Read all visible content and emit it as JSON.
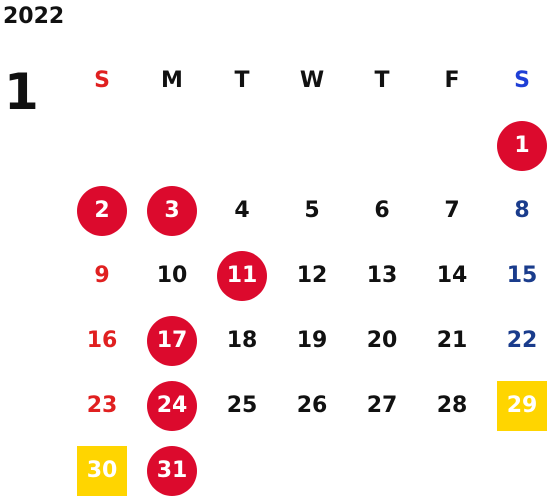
{
  "year": "2022",
  "month": "1",
  "weekdays": [
    "S",
    "M",
    "T",
    "W",
    "T",
    "F",
    "S"
  ],
  "weeks": [
    [
      {
        "day": ""
      },
      {
        "day": ""
      },
      {
        "day": ""
      },
      {
        "day": ""
      },
      {
        "day": ""
      },
      {
        "day": ""
      },
      {
        "day": "1",
        "mark": "holiday"
      }
    ],
    [
      {
        "day": "2",
        "mark": "holiday"
      },
      {
        "day": "3",
        "mark": "holiday"
      },
      {
        "day": "4"
      },
      {
        "day": "5"
      },
      {
        "day": "6"
      },
      {
        "day": "7"
      },
      {
        "day": "8"
      }
    ],
    [
      {
        "day": "9"
      },
      {
        "day": "10"
      },
      {
        "day": "11",
        "mark": "holiday"
      },
      {
        "day": "12"
      },
      {
        "day": "13"
      },
      {
        "day": "14"
      },
      {
        "day": "15"
      }
    ],
    [
      {
        "day": "16"
      },
      {
        "day": "17",
        "mark": "holiday"
      },
      {
        "day": "18"
      },
      {
        "day": "19"
      },
      {
        "day": "20"
      },
      {
        "day": "21"
      },
      {
        "day": "22"
      }
    ],
    [
      {
        "day": "23"
      },
      {
        "day": "24",
        "mark": "holiday"
      },
      {
        "day": "25"
      },
      {
        "day": "26"
      },
      {
        "day": "27"
      },
      {
        "day": "28"
      },
      {
        "day": "29",
        "mark": "special"
      }
    ],
    [
      {
        "day": "30",
        "mark": "special"
      },
      {
        "day": "31",
        "mark": "holiday"
      },
      {
        "day": ""
      },
      {
        "day": ""
      },
      {
        "day": ""
      },
      {
        "day": ""
      },
      {
        "day": ""
      }
    ]
  ],
  "colors": {
    "holiday": "#dc0a2d",
    "special": "#ffd500",
    "sunday": "#e02020",
    "saturday": "#1a3c8c"
  }
}
